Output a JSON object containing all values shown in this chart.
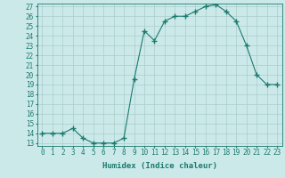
{
  "xlabel": "Humidex (Indice chaleur)",
  "ylabel": "",
  "x_values": [
    0,
    1,
    2,
    3,
    4,
    5,
    6,
    7,
    8,
    9,
    10,
    11,
    12,
    13,
    14,
    15,
    16,
    17,
    18,
    19,
    20,
    21,
    22,
    23
  ],
  "y_values": [
    14,
    14,
    14,
    14.5,
    13.5,
    13,
    13,
    13,
    13.5,
    19.5,
    24.5,
    23.5,
    25.5,
    26,
    26,
    26.5,
    27,
    27.2,
    26.5,
    25.5,
    23,
    20,
    19,
    19
  ],
  "line_color": "#1a7a6e",
  "marker": "+",
  "marker_size": 4,
  "bg_color": "#cce9e9",
  "grid_color": "#aacccc",
  "ylim_min": 13,
  "ylim_max": 27,
  "xlim_min": -0.5,
  "xlim_max": 23.5,
  "yticks": [
    13,
    14,
    15,
    16,
    17,
    18,
    19,
    20,
    21,
    22,
    23,
    24,
    25,
    26,
    27
  ],
  "xticks": [
    0,
    1,
    2,
    3,
    4,
    5,
    6,
    7,
    8,
    9,
    10,
    11,
    12,
    13,
    14,
    15,
    16,
    17,
    18,
    19,
    20,
    21,
    22,
    23
  ],
  "label_fontsize": 6.5,
  "tick_fontsize": 5.5
}
